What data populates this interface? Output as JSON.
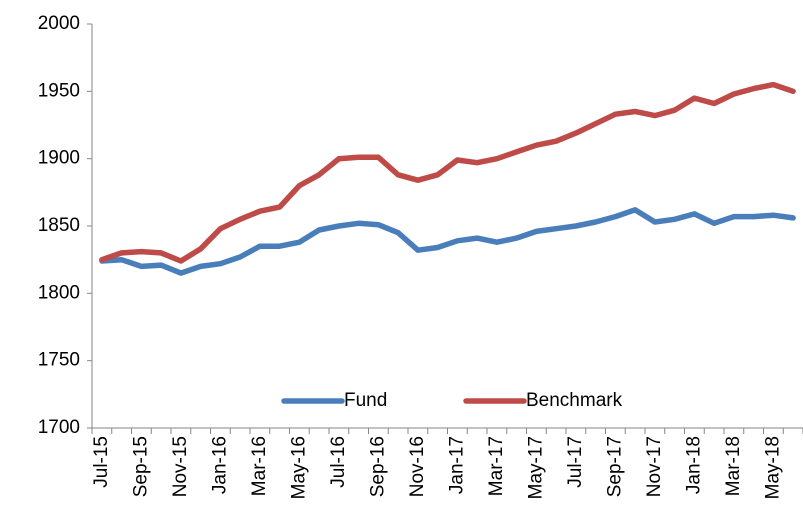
{
  "chart_data": {
    "type": "line",
    "categories": [
      "Jul-15",
      null,
      "Sep-15",
      null,
      "Nov-15",
      null,
      "Jan-16",
      null,
      "Mar-16",
      null,
      "May-16",
      null,
      "Jul-16",
      null,
      "Sep-16",
      null,
      "Nov-16",
      null,
      "Jan-17",
      null,
      "Mar-17",
      null,
      "May-17",
      null,
      "Jul-17",
      null,
      "Sep-17",
      null,
      "Nov-17",
      null,
      "Jan-18",
      null,
      "Mar-18",
      null,
      "May-18",
      null
    ],
    "series": [
      {
        "name": "Fund",
        "color": "#4a7ebb",
        "values": [
          1824,
          1825,
          1820,
          1821,
          1815,
          1820,
          1822,
          1827,
          1835,
          1835,
          1838,
          1847,
          1850,
          1852,
          1851,
          1845,
          1832,
          1834,
          1839,
          1841,
          1838,
          1841,
          1846,
          1848,
          1850,
          1853,
          1857,
          1862,
          1853,
          1855,
          1859,
          1852,
          1857,
          1857,
          1858,
          1856
        ]
      },
      {
        "name": "Benchmark",
        "color": "#be4b48",
        "values": [
          1825,
          1830,
          1831,
          1830,
          1824,
          1833,
          1848,
          1855,
          1861,
          1864,
          1880,
          1888,
          1900,
          1901,
          1901,
          1888,
          1884,
          1888,
          1899,
          1897,
          1900,
          1905,
          1910,
          1913,
          1919,
          1926,
          1933,
          1935,
          1932,
          1936,
          1945,
          1941,
          1948,
          1952,
          1955,
          1950
        ]
      }
    ],
    "ylim": [
      1700,
      2000
    ],
    "yticks": [
      1700,
      1750,
      1800,
      1850,
      1900,
      1950,
      2000
    ],
    "grid": false,
    "legend": "bottom"
  }
}
